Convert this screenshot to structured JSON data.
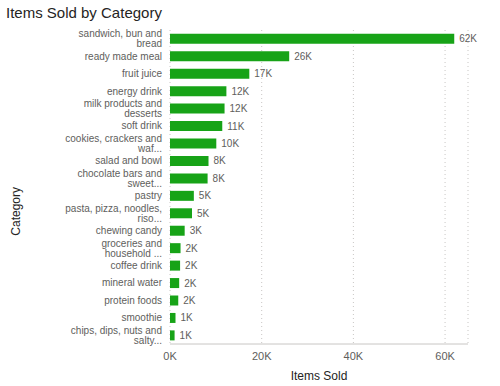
{
  "chart_data": {
    "type": "bar",
    "title": "Items Sold by Category",
    "orientation": "horizontal",
    "x_label": "Items Sold",
    "y_label": "Category",
    "categories": [
      "sandwich, bun and bread",
      "ready made meal",
      "fruit juice",
      "energy drink",
      "milk products and desserts",
      "soft drink",
      "cookies, crackers and waf...",
      "salad and bowl",
      "chocolate bars and sweet...",
      "pastry",
      "pasta, pizza, noodles, riso...",
      "chewing candy",
      "groceries and household ...",
      "coffee drink",
      "mineral water",
      "protein foods",
      "smoothie",
      "chips, dips, nuts and salty..."
    ],
    "values": [
      62000,
      26000,
      17300,
      12300,
      11900,
      11400,
      10100,
      8400,
      8200,
      5200,
      4800,
      3200,
      2300,
      2200,
      2000,
      1800,
      1200,
      1000
    ],
    "value_labels": [
      "62K",
      "26K",
      "17K",
      "12K",
      "12K",
      "11K",
      "10K",
      "8K",
      "8K",
      "5K",
      "5K",
      "3K",
      "2K",
      "2K",
      "2K",
      "2K",
      "1K",
      "1K"
    ],
    "data_labels": true,
    "color": "#17a317",
    "xlim": [
      0,
      65000
    ],
    "xticks": [
      {
        "value": 0,
        "label": "0K"
      },
      {
        "value": 20000,
        "label": "20K"
      },
      {
        "value": 40000,
        "label": "40K"
      },
      {
        "value": 60000,
        "label": "60K"
      }
    ],
    "grid": true
  }
}
